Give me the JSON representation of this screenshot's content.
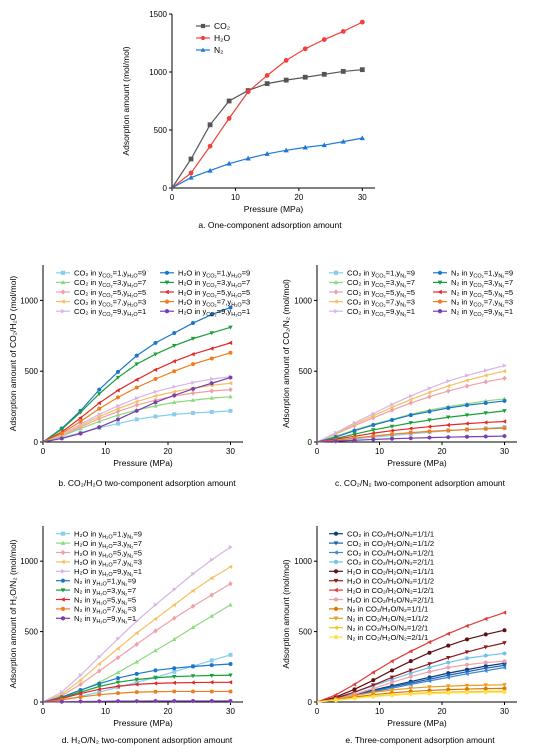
{
  "chart_data": [
    {
      "id": "a",
      "type": "line",
      "caption": "a. One-component adsorption amount",
      "xlabel": "Pressure (MPa)",
      "ylabel": "Adsorption amount (mol/mol)",
      "xlim": [
        0,
        32
      ],
      "ylim": [
        0,
        1500
      ],
      "xticks": [
        0,
        10,
        20,
        30
      ],
      "yticks": [
        0,
        500,
        1000,
        1500
      ],
      "legend_position": "top-left",
      "x": [
        0,
        3,
        6,
        9,
        12,
        15,
        18,
        21,
        24,
        27,
        30
      ],
      "series": [
        {
          "name": "CO₂",
          "color": "#555555",
          "marker": "square",
          "values": [
            0,
            250,
            545,
            750,
            840,
            900,
            930,
            955,
            980,
            1005,
            1020
          ]
        },
        {
          "name": "H₂O",
          "color": "#f0403c",
          "marker": "circle",
          "values": [
            0,
            130,
            360,
            600,
            830,
            970,
            1100,
            1200,
            1280,
            1350,
            1430
          ]
        },
        {
          "name": "N₂",
          "color": "#1e78d7",
          "marker": "triangle",
          "values": [
            0,
            90,
            150,
            210,
            255,
            295,
            325,
            350,
            370,
            400,
            430
          ]
        }
      ]
    },
    {
      "id": "b",
      "type": "line",
      "caption": "b. CO₂/H₂O two-component adsorption amount",
      "xlabel": "Pressure (MPa)",
      "ylabel": "Adsorption amount of CO₂/H₂O (mol/mol)",
      "xlim": [
        0,
        32
      ],
      "ylim": [
        0,
        1250
      ],
      "xticks": [
        0,
        10,
        20,
        30
      ],
      "yticks": [
        0,
        500,
        1000
      ],
      "legend_position": "top-left, two columns",
      "x": [
        0,
        3,
        6,
        9,
        12,
        15,
        18,
        21,
        24,
        27,
        30
      ],
      "series": [
        {
          "name": "CO₂ in y_CO₂=1,y_H₂O=9",
          "color": "#88cdf0",
          "marker": "square",
          "values": [
            0,
            30,
            65,
            100,
            130,
            160,
            180,
            195,
            205,
            212,
            220
          ]
        },
        {
          "name": "CO₂ in y_CO₂=3,y_H₂O=7",
          "color": "#8dd97f",
          "marker": "triangle",
          "values": [
            0,
            40,
            95,
            145,
            190,
            225,
            255,
            280,
            295,
            310,
            320
          ]
        },
        {
          "name": "CO₂ in y_CO₂=5,y_H₂O=5",
          "color": "#f0a0a8",
          "marker": "diamond",
          "values": [
            0,
            45,
            105,
            165,
            215,
            260,
            295,
            325,
            345,
            360,
            370
          ]
        },
        {
          "name": "CO₂ in y_CO₂=7,y_H₂O=3",
          "color": "#f5c060",
          "marker": "tri_left",
          "values": [
            0,
            48,
            115,
            180,
            235,
            285,
            325,
            355,
            380,
            400,
            415
          ]
        },
        {
          "name": "CO₂ in y_CO₂=9,y_H₂O=1",
          "color": "#d6b5e8",
          "marker": "tri_right",
          "values": [
            0,
            52,
            125,
            195,
            255,
            310,
            355,
            390,
            420,
            445,
            460
          ]
        },
        {
          "name": "H₂O in y_CO₂=1,y_H₂O=9",
          "color": "#1a76c8",
          "marker": "circle",
          "values": [
            0,
            95,
            220,
            370,
            495,
            610,
            700,
            770,
            840,
            900,
            950
          ]
        },
        {
          "name": "H₂O in y_CO₂=3,y_H₂O=7",
          "color": "#1aa038",
          "marker": "tri_down",
          "values": [
            0,
            90,
            210,
            340,
            455,
            550,
            620,
            680,
            730,
            770,
            810
          ]
        },
        {
          "name": "H₂O in y_CO₂=5,y_H₂O=5",
          "color": "#e02828",
          "marker": "tri_left",
          "values": [
            0,
            70,
            170,
            275,
            365,
            440,
            510,
            570,
            620,
            660,
            700
          ]
        },
        {
          "name": "H₂O in y_CO₂=7,y_H₂O=3",
          "color": "#f07d1e",
          "marker": "circle",
          "values": [
            0,
            60,
            145,
            235,
            315,
            385,
            445,
            500,
            550,
            590,
            630
          ]
        },
        {
          "name": "H₂O in y_CO₂=9,y_H₂O=1",
          "color": "#7a3fa8",
          "marker": "hexagon",
          "values": [
            0,
            25,
            60,
            105,
            160,
            220,
            280,
            330,
            375,
            415,
            455
          ]
        }
      ]
    },
    {
      "id": "c",
      "type": "line",
      "caption": "c. CO₂/N₂ two-component adsorption amount",
      "xlabel": "Pressure (MPa)",
      "ylabel": "Adsorption amount of CO₂/N₂ (mol/mol)",
      "xlim": [
        0,
        32
      ],
      "ylim": [
        0,
        1250
      ],
      "xticks": [
        0,
        10,
        20,
        30
      ],
      "yticks": [
        0,
        500,
        1000
      ],
      "legend_position": "top-left, two columns",
      "x": [
        0,
        3,
        6,
        9,
        12,
        15,
        18,
        21,
        24,
        27,
        30
      ],
      "series": [
        {
          "name": "CO₂ in y_CO₂=1,y_N₂=9",
          "color": "#88cdf0",
          "marker": "square",
          "values": [
            0,
            10,
            22,
            34,
            46,
            58,
            70,
            80,
            88,
            96,
            105
          ]
        },
        {
          "name": "CO₂ in y_CO₂=3,y_N₂=7",
          "color": "#8dd97f",
          "marker": "triangle",
          "values": [
            0,
            40,
            85,
            125,
            160,
            195,
            225,
            250,
            270,
            290,
            305
          ]
        },
        {
          "name": "CO₂ in y_CO₂=5,y_N₂=5",
          "color": "#f0a0a8",
          "marker": "diamond",
          "values": [
            0,
            55,
            115,
            170,
            225,
            275,
            320,
            360,
            395,
            425,
            450
          ]
        },
        {
          "name": "CO₂ in y_CO₂=7,y_N₂=3",
          "color": "#f5c060",
          "marker": "tri_left",
          "values": [
            0,
            60,
            125,
            185,
            245,
            300,
            350,
            395,
            435,
            470,
            500
          ]
        },
        {
          "name": "CO₂ in y_CO₂=9,y_N₂=1",
          "color": "#d6b5e8",
          "marker": "tri_right",
          "values": [
            0,
            65,
            135,
            200,
            265,
            325,
            380,
            430,
            470,
            505,
            540
          ]
        },
        {
          "name": "N₂ in y_CO₂=1,y_N₂=9",
          "color": "#1a76c8",
          "marker": "circle",
          "values": [
            0,
            35,
            80,
            120,
            155,
            190,
            215,
            240,
            260,
            275,
            290
          ]
        },
        {
          "name": "N₂ in y_CO₂=3,y_N₂=7",
          "color": "#1aa038",
          "marker": "tri_down",
          "values": [
            0,
            25,
            55,
            85,
            110,
            135,
            155,
            175,
            190,
            205,
            220
          ]
        },
        {
          "name": "N₂ in y_CO₂=5,y_N₂=5",
          "color": "#e02828",
          "marker": "tri_left",
          "values": [
            0,
            20,
            40,
            62,
            80,
            95,
            108,
            120,
            130,
            138,
            145
          ]
        },
        {
          "name": "N₂ in y_CO₂=7,y_N₂=3",
          "color": "#f07d1e",
          "marker": "circle",
          "values": [
            0,
            12,
            28,
            42,
            55,
            66,
            75,
            82,
            88,
            93,
            98
          ]
        },
        {
          "name": "N₂ in y_CO₂=9,y_N₂=1",
          "color": "#7a3fa8",
          "marker": "hexagon",
          "values": [
            0,
            6,
            12,
            18,
            23,
            27,
            31,
            34,
            37,
            39,
            42
          ]
        }
      ]
    },
    {
      "id": "d",
      "type": "line",
      "caption": "d. H₂O/N₂ two-component adsorption amount",
      "xlabel": "Pressure (MPa)",
      "ylabel": "Adsorption amount of H₂O/N₂ (mol/mol)",
      "xlim": [
        0,
        32
      ],
      "ylim": [
        0,
        1250
      ],
      "xticks": [
        0,
        10,
        20,
        30
      ],
      "yticks": [
        0,
        500,
        1000
      ],
      "legend_position": "top-left",
      "x": [
        0,
        3,
        6,
        9,
        12,
        15,
        18,
        21,
        24,
        27,
        30
      ],
      "series": [
        {
          "name": "H₂O in y_H₂O=1,y_N₂=9",
          "color": "#88cdf0",
          "marker": "square",
          "values": [
            0,
            15,
            40,
            70,
            105,
            140,
            175,
            215,
            255,
            295,
            335
          ]
        },
        {
          "name": "H₂O in y_H₂O=3,y_N₂=7",
          "color": "#8dd97f",
          "marker": "triangle",
          "values": [
            0,
            30,
            80,
            140,
            210,
            285,
            365,
            445,
            530,
            610,
            690
          ]
        },
        {
          "name": "H₂O in y_H₂O=5,y_N₂=5",
          "color": "#f0a0a8",
          "marker": "diamond",
          "values": [
            0,
            45,
            125,
            220,
            315,
            410,
            505,
            595,
            680,
            760,
            840
          ]
        },
        {
          "name": "H₂O in y_H₂O=7,y_N₂=3",
          "color": "#f5c060",
          "marker": "tri_left",
          "values": [
            0,
            55,
            155,
            270,
            380,
            490,
            590,
            690,
            790,
            880,
            960
          ]
        },
        {
          "name": "H₂O in y_H₂O=9,y_N₂=1",
          "color": "#d6b5e8",
          "marker": "tri_right",
          "values": [
            0,
            70,
            190,
            320,
            450,
            575,
            690,
            800,
            910,
            1010,
            1100
          ]
        },
        {
          "name": "N₂ in y_H₂O=1,y_N₂=9",
          "color": "#1a76c8",
          "marker": "circle",
          "values": [
            0,
            35,
            85,
            130,
            170,
            200,
            225,
            240,
            252,
            262,
            270
          ]
        },
        {
          "name": "N₂ in y_H₂O=3,y_N₂=7",
          "color": "#1aa038",
          "marker": "tri_down",
          "values": [
            0,
            30,
            70,
            110,
            140,
            160,
            172,
            180,
            185,
            188,
            190
          ]
        },
        {
          "name": "N₂ in y_H₂O=5,y_N₂=5",
          "color": "#e02828",
          "marker": "tri_left",
          "values": [
            0,
            25,
            60,
            90,
            112,
            125,
            132,
            136,
            138,
            140,
            140
          ]
        },
        {
          "name": "N₂ in y_H₂O=7,y_N₂=3",
          "color": "#f07d1e",
          "marker": "circle",
          "values": [
            0,
            15,
            35,
            52,
            63,
            70,
            73,
            75,
            75,
            75,
            75
          ]
        },
        {
          "name": "N₂ in y_H₂O=9,y_N₂=1",
          "color": "#7a3fa8",
          "marker": "hexagon",
          "values": [
            0,
            2,
            4,
            5,
            6,
            6,
            7,
            7,
            7,
            7,
            7
          ]
        }
      ]
    },
    {
      "id": "e",
      "type": "line",
      "caption": "e. Three-component adsorption amount",
      "xlabel": "Pressure (MPa)",
      "ylabel": "Adsorption amount (mol/mol)",
      "xlim": [
        0,
        32
      ],
      "ylim": [
        0,
        1250
      ],
      "xticks": [
        0,
        10,
        20,
        30
      ],
      "yticks": [
        0,
        500,
        1000
      ],
      "legend_position": "top-left",
      "x": [
        0,
        3,
        6,
        9,
        12,
        15,
        18,
        21,
        24,
        27,
        30
      ],
      "series": [
        {
          "name": "CO₂ in CO₂/H₂O/N₂=1/1/1",
          "color": "#0a3d7a",
          "marker": "circle",
          "values": [
            0,
            25,
            55,
            85,
            115,
            145,
            175,
            205,
            230,
            255,
            275
          ]
        },
        {
          "name": "CO₂ in CO₂/H₂O/N₂=1/1/2",
          "color": "#1d5fae",
          "marker": "tri_down",
          "values": [
            0,
            23,
            50,
            80,
            108,
            135,
            162,
            190,
            215,
            240,
            260
          ]
        },
        {
          "name": "CO₂ in CO₂/H₂O/N₂=1/2/1",
          "color": "#3b86d6",
          "marker": "tri_left",
          "values": [
            0,
            20,
            45,
            72,
            98,
            125,
            150,
            175,
            200,
            222,
            245
          ]
        },
        {
          "name": "CO₂ in CO₂/H₂O/N₂=2/1/1",
          "color": "#6fc2ec",
          "marker": "hexagon",
          "values": [
            0,
            30,
            70,
            115,
            160,
            205,
            245,
            280,
            310,
            330,
            345
          ]
        },
        {
          "name": "H₂O in CO₂/H₂O/N₂=1/1/1",
          "color": "#5c1010",
          "marker": "circle",
          "values": [
            0,
            35,
            90,
            155,
            225,
            290,
            350,
            400,
            445,
            480,
            510
          ]
        },
        {
          "name": "H₂O in CO₂/H₂O/N₂=1/1/2",
          "color": "#8e1b1b",
          "marker": "tri_down",
          "values": [
            0,
            28,
            70,
            120,
            175,
            225,
            270,
            315,
            355,
            390,
            420
          ]
        },
        {
          "name": "H₂O in CO₂/H₂O/N₂=1/2/1",
          "color": "#e03a3a",
          "marker": "tri_left",
          "values": [
            0,
            50,
            125,
            210,
            290,
            360,
            425,
            485,
            540,
            590,
            635
          ]
        },
        {
          "name": "H₂O in CO₂/H₂O/N₂=2/1/1",
          "color": "#f4a0a8",
          "marker": "hexagon",
          "values": [
            0,
            20,
            55,
            95,
            140,
            180,
            215,
            245,
            265,
            280,
            290
          ]
        },
        {
          "name": "N₂ in CO₂/H₂O/N₂=1/1/1",
          "color": "#d97a00",
          "marker": "circle",
          "values": [
            0,
            15,
            35,
            52,
            65,
            75,
            82,
            88,
            92,
            95,
            97
          ]
        },
        {
          "name": "N₂ in CO₂/H₂O/N₂=1/1/2",
          "color": "#f09a1a",
          "marker": "tri_down",
          "values": [
            0,
            20,
            45,
            68,
            85,
            98,
            107,
            113,
            117,
            120,
            122
          ]
        },
        {
          "name": "N₂ in CO₂/H₂O/N₂=1/2/1",
          "color": "#f5c518",
          "marker": "tri_left",
          "values": [
            0,
            12,
            28,
            42,
            52,
            60,
            66,
            70,
            73,
            75,
            77
          ]
        },
        {
          "name": "N₂ in CO₂/H₂O/N₂=2/1/1",
          "color": "#ffe14a",
          "marker": "hexagon",
          "values": [
            0,
            12,
            26,
            38,
            48,
            55,
            60,
            64,
            67,
            69,
            70
          ]
        }
      ]
    }
  ]
}
